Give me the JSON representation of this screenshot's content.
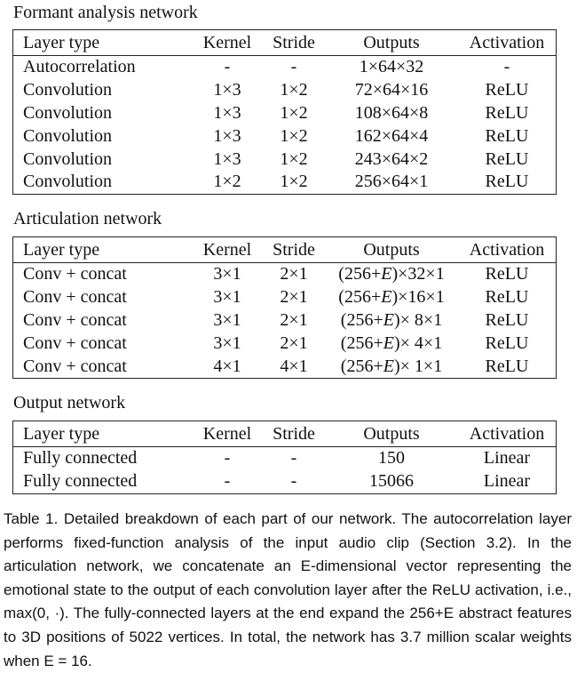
{
  "headers": [
    "Layer type",
    "Kernel",
    "Stride",
    "Outputs",
    "Activation"
  ],
  "formant": {
    "title": "Formant analysis network",
    "rows": [
      [
        "Autocorrelation",
        "-",
        "-",
        "1×64×32",
        "-"
      ],
      [
        "Convolution",
        "1×3",
        "1×2",
        "72×64×16",
        "ReLU"
      ],
      [
        "Convolution",
        "1×3",
        "1×2",
        "108×64×8",
        "ReLU"
      ],
      [
        "Convolution",
        "1×3",
        "1×2",
        "162×64×4",
        "ReLU"
      ],
      [
        "Convolution",
        "1×3",
        "1×2",
        "243×64×2",
        "ReLU"
      ],
      [
        "Convolution",
        "1×2",
        "1×2",
        "256×64×1",
        "ReLU"
      ]
    ]
  },
  "articulation": {
    "title": "Articulation network",
    "rows": [
      [
        "Conv + concat",
        "3×1",
        "2×1",
        "(256+E)×32×1",
        "ReLU"
      ],
      [
        "Conv + concat",
        "3×1",
        "2×1",
        "(256+E)×16×1",
        "ReLU"
      ],
      [
        "Conv + concat",
        "3×1",
        "2×1",
        "(256+E)× 8×1",
        "ReLU"
      ],
      [
        "Conv + concat",
        "3×1",
        "2×1",
        "(256+E)× 4×1",
        "ReLU"
      ],
      [
        "Conv + concat",
        "4×1",
        "4×1",
        "(256+E)× 1×1",
        "ReLU"
      ]
    ]
  },
  "output": {
    "title": "Output network",
    "rows": [
      [
        "Fully connected",
        "-",
        "-",
        "150",
        "Linear"
      ],
      [
        "Fully connected",
        "-",
        "-",
        "15066",
        "Linear"
      ]
    ]
  },
  "caption": "Table 1.  Detailed breakdown of each part of our network. The autocorrelation layer performs fixed-function analysis of the input audio clip (Section 3.2). In the articulation network, we concatenate an E-dimensional vector representing the emotional state to the output of each convolution layer after the ReLU activation, i.e., max(0, ·). The fully-connected layers at the end expand the 256+E abstract features to 3D positions of 5022 vertices. In total, the network has 3.7 million scalar weights when E = 16."
}
